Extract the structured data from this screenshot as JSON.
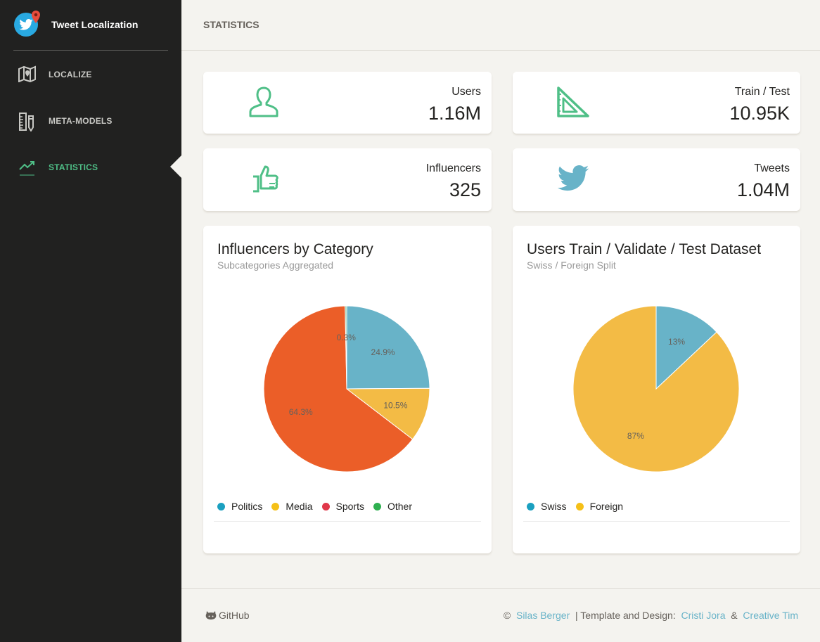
{
  "brand": {
    "title": "Tweet Localization"
  },
  "sidebar": {
    "items": [
      {
        "label": "LOCALIZE",
        "icon": "map-icon"
      },
      {
        "label": "META-MODELS",
        "icon": "ruler-pencil-icon"
      },
      {
        "label": "STATISTICS",
        "icon": "trending-up-icon",
        "active": true
      }
    ]
  },
  "header": {
    "title": "STATISTICS"
  },
  "stats": [
    {
      "label": "Users",
      "value": "1.16M",
      "icon": "user-icon"
    },
    {
      "label": "Train / Test",
      "value": "10.95K",
      "icon": "set-square-icon"
    },
    {
      "label": "Influencers",
      "value": "325",
      "icon": "thumbs-up-icon"
    },
    {
      "label": "Tweets",
      "value": "1.04M",
      "icon": "twitter-bird-icon"
    }
  ],
  "colors": {
    "accent": "#4fbf87",
    "link": "#68b3c8",
    "politics": "#68b3c8",
    "media": "#f3bb45",
    "sports": "#eb5e28",
    "other": "#7ac29a",
    "legend_politics": "#1ba0c0",
    "legend_media": "#f5c018",
    "legend_sports": "#e0384a",
    "legend_other": "#2fb050"
  },
  "charts": {
    "influencers": {
      "title": "Influencers by Category",
      "subtitle": "Subcategories Aggregated"
    },
    "users_split": {
      "title": "Users Train / Validate / Test Dataset",
      "subtitle": "Swiss / Foreign Split"
    }
  },
  "chart_data": [
    {
      "type": "pie",
      "title": "Influencers by Category",
      "subtitle": "Subcategories Aggregated",
      "categories": [
        "Politics",
        "Media",
        "Sports",
        "Other"
      ],
      "values": [
        24.9,
        10.5,
        64.3,
        0.3
      ],
      "labels": [
        "24.9%",
        "10.5%",
        "64.3%",
        "0.3%"
      ],
      "legend": "bottom-left"
    },
    {
      "type": "pie",
      "title": "Users Train / Validate / Test Dataset",
      "subtitle": "Swiss / Foreign Split",
      "categories": [
        "Swiss",
        "Foreign"
      ],
      "values": [
        13,
        87
      ],
      "labels": [
        "13%",
        "87%"
      ],
      "legend": "bottom-left"
    }
  ],
  "footer": {
    "github": "GitHub",
    "copyright": "©",
    "author": "Silas Berger",
    "template_text": "| Template and Design:",
    "designer": "Cristi Jora",
    "amp": "&",
    "company": "Creative Tim"
  }
}
